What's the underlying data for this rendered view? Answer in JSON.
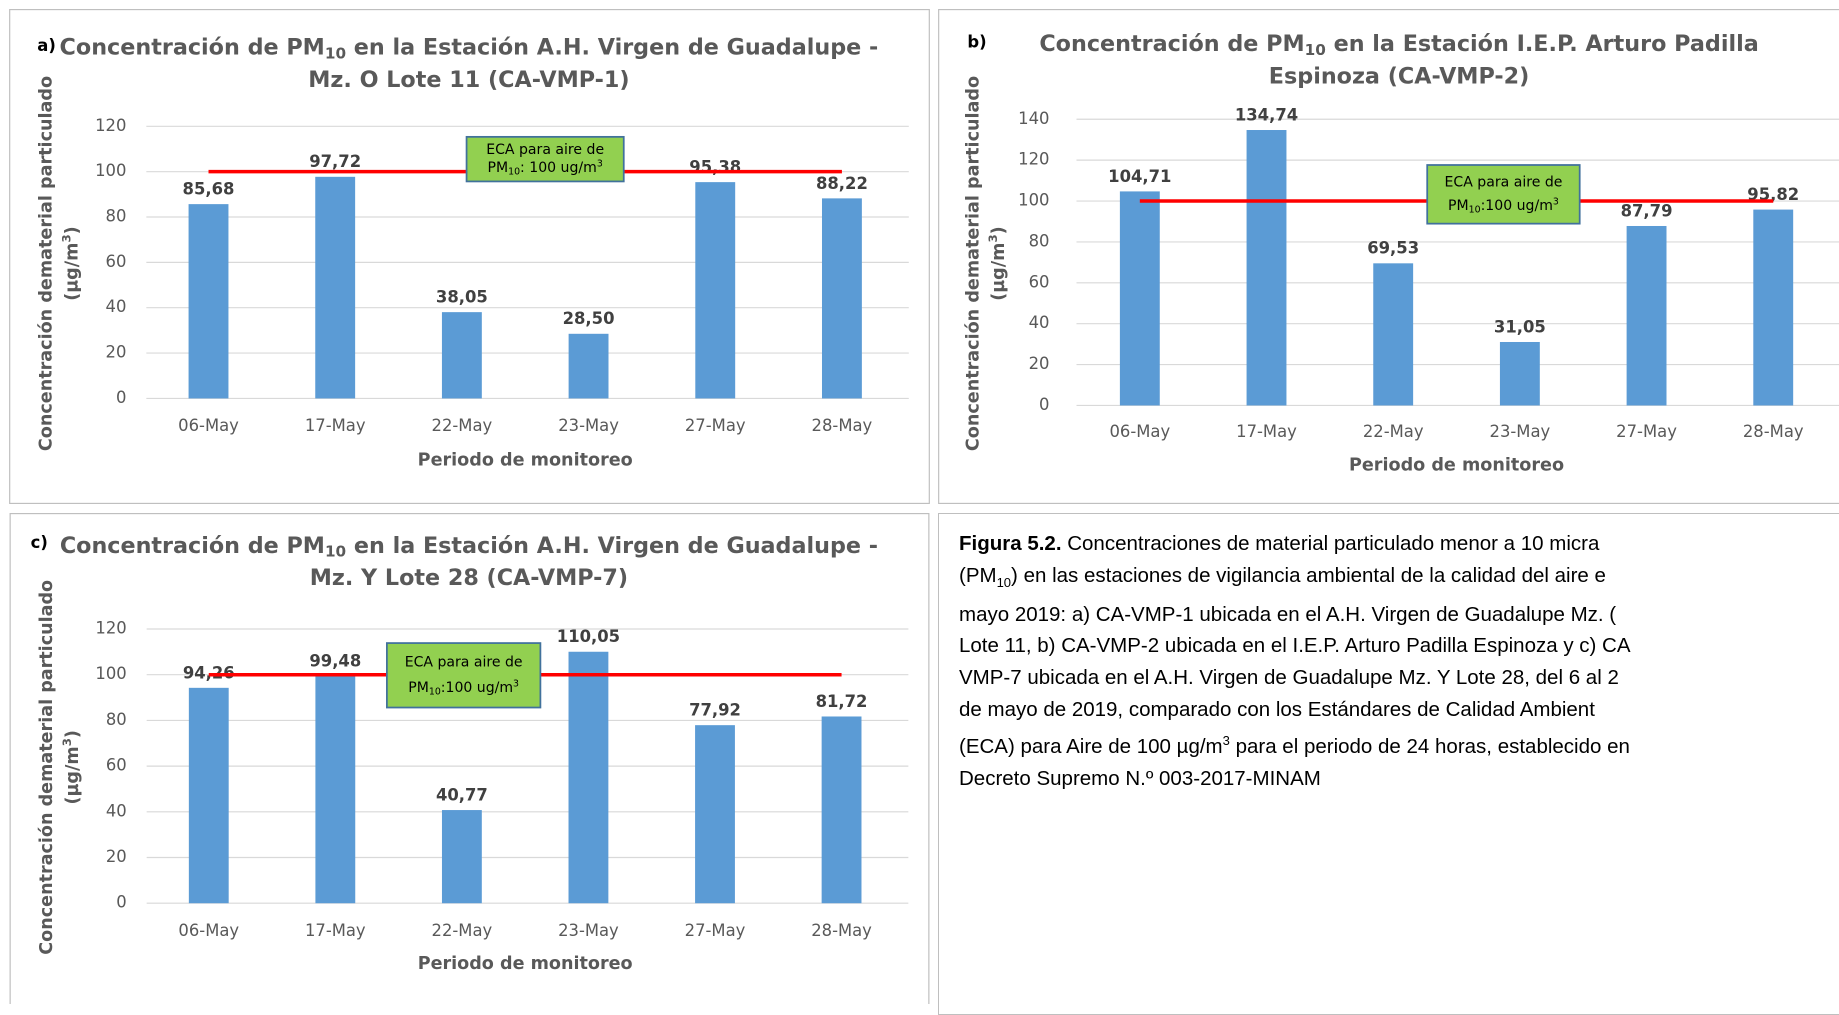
{
  "chart_data": [
    {
      "type": "bar",
      "panel": "a)",
      "title_pre": "Concentración de PM",
      "title_sub": "10",
      "title_post": " en la Estación A.H. Virgen de Guadalupe -",
      "title_line2": "Mz. O Lote 11 (CA-VMP-1)",
      "y_label": "Concentración dematerial particulado",
      "y_unit_pre": "(µg/m",
      "y_unit_sup": "3",
      "y_unit_post": ")",
      "x_label": "Periodo de monitoreo",
      "categories": [
        "06-May",
        "17-May",
        "22-May",
        "23-May",
        "27-May",
        "28-May"
      ],
      "values": [
        85.68,
        97.72,
        38.05,
        28.5,
        95.38,
        88.22
      ],
      "value_labels": [
        "85,68",
        "97,72",
        "38,05",
        "28,50",
        "95,38",
        "88,22"
      ],
      "color": "#5b9bd5",
      "ylim": [
        0,
        120
      ],
      "yticks": [
        0,
        20,
        40,
        60,
        80,
        100,
        120
      ],
      "grid": true,
      "threshold": 100,
      "threshold_color": "#ff0000",
      "annotation": {
        "line1": "ECA para aire de",
        "pre": "PM",
        "sub": "10",
        "mid": ": 100 ug/m",
        "sup": "3"
      }
    },
    {
      "type": "bar",
      "panel": "b)",
      "title_pre": "Concentración de PM",
      "title_sub": "10",
      "title_post": " en la Estación I.E.P. Arturo Padilla",
      "title_line2": "Espinoza (CA-VMP-2)",
      "y_label": "Concentración dematerial particulado",
      "y_unit_pre": "(µg/m",
      "y_unit_sup": "3",
      "y_unit_post": ")",
      "x_label": "Periodo de monitoreo",
      "categories": [
        "06-May",
        "17-May",
        "22-May",
        "23-May",
        "27-May",
        "28-May"
      ],
      "values": [
        104.71,
        134.74,
        69.53,
        31.05,
        87.79,
        95.82
      ],
      "value_labels": [
        "104,71",
        "134,74",
        "69,53",
        "31,05",
        "87,79",
        "95,82"
      ],
      "color": "#5b9bd5",
      "ylim": [
        0,
        140
      ],
      "yticks": [
        0,
        20,
        40,
        60,
        80,
        100,
        120,
        140
      ],
      "grid": true,
      "threshold": 100,
      "threshold_color": "#ff0000",
      "annotation": {
        "line1": "ECA para aire de",
        "pre": "PM",
        "sub": "10",
        "mid": ":100 ug/m",
        "sup": "3"
      }
    },
    {
      "type": "bar",
      "panel": "c)",
      "title_pre": "Concentración de PM",
      "title_sub": "10",
      "title_post": " en la Estación A.H. Virgen de Guadalupe -",
      "title_line2": "Mz. Y Lote 28 (CA-VMP-7)",
      "y_label": "Concentración dematerial particulado",
      "y_unit_pre": "(µg/m",
      "y_unit_sup": "3",
      "y_unit_post": ")",
      "x_label": "Periodo de monitoreo",
      "categories": [
        "06-May",
        "17-May",
        "22-May",
        "23-May",
        "27-May",
        "28-May"
      ],
      "values": [
        94.26,
        99.48,
        40.77,
        110.05,
        77.92,
        81.72
      ],
      "value_labels": [
        "94,26",
        "99,48",
        "40,77",
        "110,05",
        "77,92",
        "81,72"
      ],
      "color": "#5b9bd5",
      "ylim": [
        0,
        120
      ],
      "yticks": [
        0,
        20,
        40,
        60,
        80,
        100,
        120
      ],
      "grid": true,
      "threshold": 100,
      "threshold_color": "#ff0000",
      "annotation": {
        "line1": "ECA para aire de",
        "pre": "PM",
        "sub": "10",
        "mid": ":100 ug/m",
        "sup": "3"
      }
    }
  ],
  "caption": {
    "label": "Figura 5.2.",
    "l1": " Concentraciones de material particulado menor a 10 micra",
    "l2a": "(PM",
    "l2sub": "10",
    "l2b": ") en las estaciones de vigilancia ambiental de la calidad del aire e",
    "l3": "mayo 2019: a) CA-VMP-1 ubicada en el A.H. Virgen de Guadalupe Mz. (",
    "l4": "Lote 11, b) CA-VMP-2 ubicada en el I.E.P. Arturo Padilla Espinoza y c) CA",
    "l5": "VMP-7 ubicada en el A.H. Virgen de Guadalupe Mz. Y Lote 28, del 6 al 2",
    "l6": "de mayo de 2019, comparado con los Estándares de Calidad Ambient",
    "l7a": "(ECA) para Aire de 100 µg/m",
    "l7sup": "3",
    "l7b": " para el periodo de 24 horas, establecido en",
    "l8": "Decreto Supremo N.º 003-2017-MINAM"
  }
}
